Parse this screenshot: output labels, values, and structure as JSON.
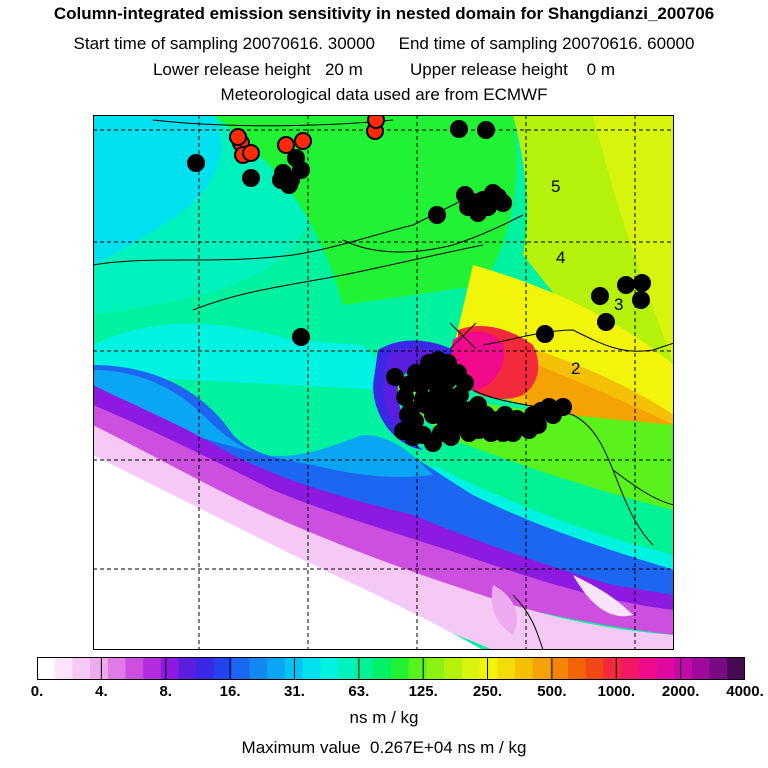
{
  "header": {
    "title": "Column-integrated emission sensitivity in nested domain for Shangdianzi_200706",
    "line2": "Start time of sampling 20070616. 30000     End time of sampling 20070616. 60000",
    "line3": "Lower release height   20 m          Upper release height    0 m",
    "line4": "Meteorological data used are from ECMWF"
  },
  "map": {
    "contour_labels": [
      "5",
      "4",
      "3",
      "2"
    ],
    "release_marker": "x-marker",
    "colors": {
      "coastline": "#000000",
      "gridline": "#000000",
      "black_dot": "#000000",
      "red_dot": "#ff2a0a"
    }
  },
  "colorbar": {
    "tick_labels": [
      "0.",
      "4.",
      "8.",
      "16.",
      "31.",
      "63.",
      "125.",
      "250.",
      "500.",
      "1000.",
      "2000.",
      "4000."
    ],
    "colors": [
      "#ffffff",
      "#fbe4fb",
      "#f5c8f5",
      "#eeaaee",
      "#e07be6",
      "#cc4fe0",
      "#b52be0",
      "#8c1ae0",
      "#5a1ee0",
      "#3b28e6",
      "#2244ee",
      "#1c66f2",
      "#1488f2",
      "#0aa6f4",
      "#00c4f2",
      "#00e0ee",
      "#00f2e0",
      "#00f2bc",
      "#00f294",
      "#00f264",
      "#22f234",
      "#5af21c",
      "#8cf214",
      "#b4f20c",
      "#d8f40c",
      "#f2f40a",
      "#f4dc08",
      "#f4c006",
      "#f4a204",
      "#f48404",
      "#f46404",
      "#f24818",
      "#f22a3c",
      "#f21864",
      "#f20a8c",
      "#e00aa0",
      "#c40aa6",
      "#a00a9c",
      "#780a84",
      "#460a52"
    ],
    "unit": "ns m / kg"
  },
  "footer": {
    "max_value": "Maximum value  0.267E+04 ns m / kg"
  }
}
